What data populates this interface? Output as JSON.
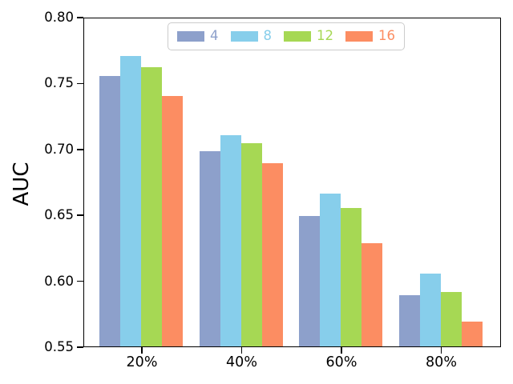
{
  "chart_data": {
    "type": "bar",
    "title": "",
    "xlabel": "",
    "ylabel": "AUC",
    "categories": [
      "20%",
      "40%",
      "60%",
      "80%"
    ],
    "series": [
      {
        "name": "4",
        "color": "#8da0cb",
        "values": [
          0.755,
          0.698,
          0.649,
          0.589
        ]
      },
      {
        "name": "8",
        "color": "#87ceeb",
        "values": [
          0.77,
          0.71,
          0.666,
          0.605
        ]
      },
      {
        "name": "12",
        "color": "#a6d854",
        "values": [
          0.762,
          0.704,
          0.655,
          0.591
        ]
      },
      {
        "name": "16",
        "color": "#fc8d62",
        "values": [
          0.74,
          0.689,
          0.628,
          0.569
        ]
      }
    ],
    "ylim": [
      0.55,
      0.8
    ],
    "yticks": [
      0.55,
      0.6,
      0.65,
      0.7,
      0.75,
      0.8
    ],
    "ytick_format_decimals": 2,
    "legend_position": "upper center",
    "grid": false,
    "spine_color": "#000000",
    "background_color": "#ffffff"
  }
}
